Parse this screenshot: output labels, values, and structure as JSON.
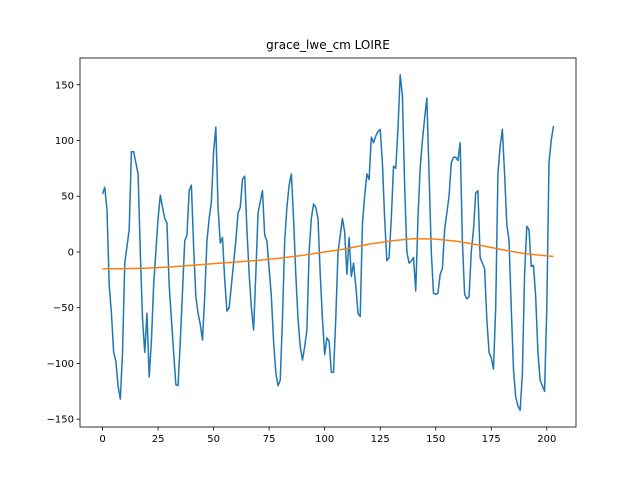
{
  "chart_data": {
    "type": "line",
    "title": "grace_lwe_cm LOIRE",
    "x": [
      0,
      1,
      2,
      3,
      4,
      5,
      6,
      7,
      8,
      9,
      10,
      11,
      12,
      13,
      14,
      15,
      16,
      17,
      18,
      19,
      20,
      21,
      22,
      23,
      24,
      25,
      26,
      27,
      28,
      29,
      30,
      31,
      32,
      33,
      34,
      35,
      36,
      37,
      38,
      39,
      40,
      41,
      42,
      43,
      44,
      45,
      46,
      47,
      48,
      49,
      50,
      51,
      52,
      53,
      54,
      55,
      56,
      57,
      58,
      59,
      60,
      61,
      62,
      63,
      64,
      65,
      66,
      67,
      68,
      69,
      70,
      71,
      72,
      73,
      74,
      75,
      76,
      77,
      78,
      79,
      80,
      81,
      82,
      83,
      84,
      85,
      86,
      87,
      88,
      89,
      90,
      91,
      92,
      93,
      94,
      95,
      96,
      97,
      98,
      99,
      100,
      101,
      102,
      103,
      104,
      105,
      106,
      107,
      108,
      109,
      110,
      111,
      112,
      113,
      114,
      115,
      116,
      117,
      118,
      119,
      120,
      121,
      122,
      123,
      124,
      125,
      126,
      127,
      128,
      129,
      130,
      131,
      132,
      133,
      134,
      135,
      136,
      137,
      138,
      139,
      140,
      141,
      142,
      143,
      144,
      145,
      146,
      147,
      148,
      149,
      150,
      151,
      152,
      153,
      154,
      155,
      156,
      157,
      158,
      159,
      160,
      161,
      162,
      163,
      164,
      165,
      166,
      167,
      168,
      169,
      170,
      171,
      172,
      173,
      174,
      175,
      176,
      177,
      178,
      179,
      180,
      181,
      182,
      183,
      184,
      185,
      186,
      187,
      188,
      189,
      190,
      191,
      192,
      193,
      194,
      195,
      196,
      197,
      198,
      199,
      200,
      201,
      202,
      203
    ],
    "series": [
      {
        "color": "#1f77b4",
        "values": [
          52,
          58,
          38,
          -30,
          -55,
          -90,
          -98,
          -120,
          -132,
          -90,
          -10,
          5,
          20,
          90,
          90,
          80,
          70,
          0,
          -60,
          -90,
          -55,
          -112,
          -80,
          -30,
          0,
          30,
          51,
          40,
          30,
          26,
          -30,
          -60,
          -90,
          -119,
          -120,
          -80,
          -35,
          10,
          15,
          55,
          60,
          5,
          -40,
          -55,
          -65,
          -79,
          -40,
          10,
          30,
          45,
          90,
          112,
          40,
          8,
          13,
          -25,
          -53,
          -50,
          -30,
          -10,
          10,
          35,
          40,
          65,
          68,
          20,
          -20,
          -50,
          -70,
          -20,
          35,
          45,
          55,
          15,
          10,
          -15,
          -40,
          -80,
          -108,
          -120,
          -115,
          -60,
          10,
          40,
          60,
          70,
          30,
          -20,
          -60,
          -85,
          -97,
          -85,
          -70,
          0,
          30,
          43,
          40,
          30,
          -20,
          -60,
          -92,
          -77,
          -80,
          -108,
          -108,
          -60,
          0,
          15,
          30,
          18,
          -20,
          13,
          -22,
          -10,
          -30,
          -55,
          -58,
          25,
          50,
          70,
          65,
          103,
          98,
          104,
          108,
          110,
          80,
          30,
          -8,
          -5,
          30,
          77,
          75,
          110,
          159,
          140,
          60,
          0,
          -10,
          -8,
          -5,
          -35,
          30,
          75,
          100,
          120,
          138,
          70,
          0,
          -37,
          -38,
          -37,
          -20,
          -15,
          20,
          35,
          50,
          80,
          85,
          85,
          82,
          98,
          10,
          -38,
          -42,
          -40,
          0,
          20,
          53,
          55,
          -5,
          -10,
          -15,
          -60,
          -90,
          -95,
          -105,
          -50,
          70,
          95,
          110,
          70,
          25,
          10,
          -50,
          -105,
          -130,
          -138,
          -142,
          -110,
          -20,
          23,
          20,
          -13,
          -12,
          -40,
          -90,
          -115,
          -120,
          -125,
          -50,
          80,
          100,
          113
        ]
      },
      {
        "color": "#ff7f0e",
        "x": [
          0,
          10,
          20,
          30,
          40,
          50,
          60,
          70,
          80,
          90,
          100,
          110,
          120,
          130,
          140,
          150,
          160,
          170,
          180,
          190,
          200,
          203
        ],
        "values": [
          -15,
          -15,
          -14.5,
          -13.5,
          -12,
          -10.5,
          -9,
          -7.5,
          -5.5,
          -3,
          0,
          3,
          7,
          10,
          12,
          11.5,
          9.5,
          6,
          2,
          -1.5,
          -3.5,
          -4
        ]
      }
    ],
    "xlim": [
      -10.15,
      213.15
    ],
    "xticks": [
      0,
      25,
      50,
      75,
      100,
      125,
      150,
      175,
      200
    ],
    "ylim": [
      -157,
      174
    ],
    "yticks": [
      {
        "value": -150,
        "label": "−150"
      },
      {
        "value": -100,
        "label": "−100"
      },
      {
        "value": -50,
        "label": "−50"
      },
      0,
      50,
      100,
      150
    ]
  }
}
